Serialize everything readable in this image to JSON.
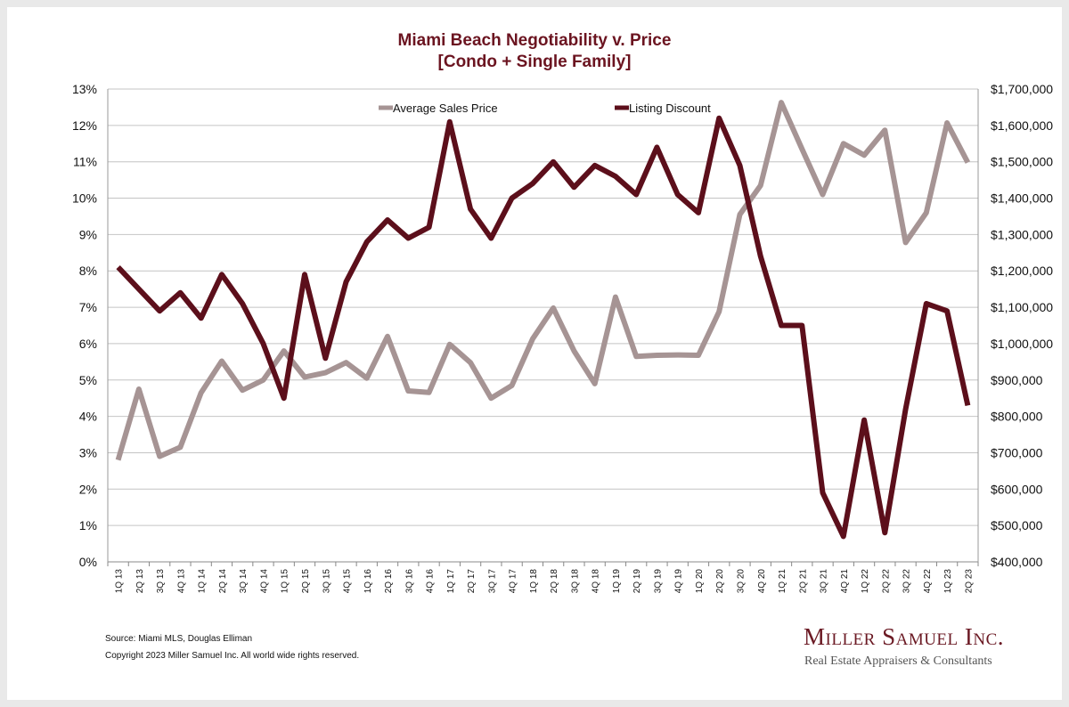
{
  "chart_data": {
    "type": "line",
    "title": "Miami Beach Negotiability v. Price",
    "subtitle": "[Condo + Single Family]",
    "categories": [
      "1Q 13",
      "2Q 13",
      "3Q 13",
      "4Q 13",
      "1Q 14",
      "2Q 14",
      "3Q 14",
      "4Q 14",
      "1Q 15",
      "2Q 15",
      "3Q 15",
      "4Q 15",
      "1Q 16",
      "2Q 16",
      "3Q 16",
      "4Q 16",
      "1Q 17",
      "2Q 17",
      "3Q 17",
      "4Q 17",
      "1Q 18",
      "2Q 18",
      "3Q 18",
      "4Q 18",
      "1Q 19",
      "2Q 19",
      "3Q 19",
      "4Q 19",
      "1Q 20",
      "2Q 20",
      "3Q 20",
      "4Q 20",
      "1Q 21",
      "2Q 21",
      "3Q 21",
      "4Q 21",
      "1Q 22",
      "2Q 22",
      "3Q 22",
      "4Q 22",
      "1Q 23",
      "2Q 23"
    ],
    "y_left": {
      "min": 0,
      "max": 13,
      "ticks": [
        "0%",
        "1%",
        "2%",
        "3%",
        "4%",
        "5%",
        "6%",
        "7%",
        "8%",
        "9%",
        "10%",
        "11%",
        "12%",
        "13%"
      ]
    },
    "y_right": {
      "min": 400000,
      "max": 1700000,
      "ticks": [
        "$400,000",
        "$500,000",
        "$600,000",
        "$700,000",
        "$800,000",
        "$900,000",
        "$1,000,000",
        "$1,100,000",
        "$1,200,000",
        "$1,300,000",
        "$1,400,000",
        "$1,500,000",
        "$1,600,000",
        "$1,700,000"
      ]
    },
    "grid": true,
    "legend_position": "top",
    "series": [
      {
        "name": "Average Sales Price",
        "axis": "right",
        "color": "#a69494",
        "values": [
          680000,
          875000,
          690000,
          715000,
          865000,
          952000,
          872000,
          900000,
          980000,
          908000,
          920000,
          948000,
          905000,
          1020000,
          870000,
          866000,
          998000,
          948000,
          850000,
          885000,
          1013000,
          1098000,
          980000,
          890000,
          1128000,
          965000,
          968000,
          969000,
          968000,
          1088000,
          1355000,
          1435000,
          1663000,
          1535000,
          1410000,
          1550000,
          1518000,
          1587000,
          1278000,
          1360000,
          1607000,
          1498000
        ]
      },
      {
        "name": "Listing Discount",
        "axis": "left",
        "color": "#5c0f1b",
        "values": [
          8.1,
          7.5,
          6.9,
          7.4,
          6.7,
          7.9,
          7.1,
          6.0,
          4.5,
          7.9,
          5.6,
          7.7,
          8.8,
          9.4,
          8.9,
          9.2,
          12.1,
          9.7,
          8.9,
          10.0,
          10.4,
          11.0,
          10.3,
          10.9,
          10.6,
          10.1,
          11.4,
          10.1,
          9.6,
          12.2,
          10.9,
          8.4,
          6.5,
          6.5,
          1.9,
          0.7,
          3.9,
          0.8,
          4.2,
          7.1,
          6.9,
          4.3
        ]
      }
    ]
  },
  "footer": {
    "source": "Source: Miami MLS, Douglas Elliman",
    "copyright": "Copyright 2023 Miller Samuel Inc.  All world wide rights reserved."
  },
  "brand": {
    "name": "Miller Samuel Inc.",
    "tagline": "Real Estate Appraisers & Consultants"
  }
}
